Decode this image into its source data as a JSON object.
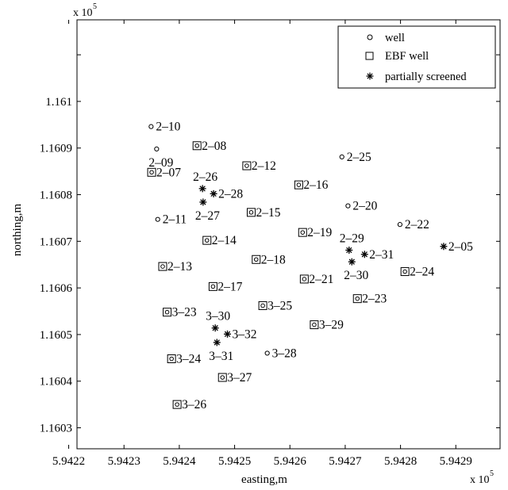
{
  "chart_data": {
    "type": "scatter",
    "title": "",
    "xlabel": "easting,m",
    "ylabel": "northing,m",
    "x_multiplier": "x 10",
    "x_multiplier_exp": "5",
    "y_multiplier": "x 10",
    "y_multiplier_exp": "5",
    "xlim": [
      594221.5,
      594298
    ],
    "ylim": [
      116025.5,
      116117.5
    ],
    "x_ticks": [
      594220,
      594230,
      594240,
      594250,
      594260,
      594270,
      594280,
      594290
    ],
    "x_tick_labels": [
      "5.9422",
      "5.9423",
      "5.9424",
      "5.9425",
      "5.9426",
      "5.9427",
      "5.9428",
      "5.9429"
    ],
    "y_ticks": [
      116030,
      116040,
      116050,
      116060,
      116070,
      116080,
      116090,
      116100,
      116110
    ],
    "y_tick_labels": [
      "1.1603",
      "1.1604",
      "1.1605",
      "1.1606",
      "1.1607",
      "1.1608",
      "1.1609",
      "1.161",
      ""
    ],
    "legend": {
      "position": "top-right",
      "entries": [
        {
          "marker": "circle",
          "label": "well"
        },
        {
          "marker": "square",
          "label": "EBF well"
        },
        {
          "marker": "star",
          "label": "partially screened"
        }
      ]
    },
    "series": [
      {
        "name": "well",
        "marker": "circle",
        "points": [
          {
            "x": 594234.9,
            "y": 116094.6,
            "label": "2-10"
          },
          {
            "x": 594235.9,
            "y": 116089.8,
            "label": "2-09"
          },
          {
            "x": 594269.4,
            "y": 116088.1,
            "label": "2-25"
          },
          {
            "x": 594270.5,
            "y": 116077.6,
            "label": "2-20"
          },
          {
            "x": 594236.1,
            "y": 116074.7,
            "label": "2-11"
          },
          {
            "x": 594279.9,
            "y": 116073.6,
            "label": "2-22"
          },
          {
            "x": 594255.9,
            "y": 116046.0,
            "label": "3-28"
          }
        ]
      },
      {
        "name": "EBF well",
        "marker": "square",
        "points": [
          {
            "x": 594243.2,
            "y": 116090.5,
            "label": "2-08"
          },
          {
            "x": 594252.2,
            "y": 116086.2,
            "label": "2-12"
          },
          {
            "x": 594235.0,
            "y": 116084.8,
            "label": "2-07"
          },
          {
            "x": 594261.6,
            "y": 116082.1,
            "label": "2-16"
          },
          {
            "x": 594253.0,
            "y": 116076.2,
            "label": "2-15"
          },
          {
            "x": 594262.3,
            "y": 116071.9,
            "label": "2-19"
          },
          {
            "x": 594245.0,
            "y": 116070.2,
            "label": "2-14"
          },
          {
            "x": 594253.9,
            "y": 116066.1,
            "label": "2-18"
          },
          {
            "x": 594237.0,
            "y": 116064.6,
            "label": "2-13"
          },
          {
            "x": 594280.8,
            "y": 116063.5,
            "label": "2-24"
          },
          {
            "x": 594262.6,
            "y": 116061.9,
            "label": "2-21"
          },
          {
            "x": 594246.1,
            "y": 116060.3,
            "label": "2-17"
          },
          {
            "x": 594272.2,
            "y": 116057.7,
            "label": "2-23"
          },
          {
            "x": 594255.1,
            "y": 116056.2,
            "label": "3-25"
          },
          {
            "x": 594237.8,
            "y": 116054.8,
            "label": "3-23"
          },
          {
            "x": 594264.4,
            "y": 116052.1,
            "label": "3-29"
          },
          {
            "x": 594238.6,
            "y": 116044.8,
            "label": "3-24"
          },
          {
            "x": 594247.8,
            "y": 116040.8,
            "label": "3-27"
          },
          {
            "x": 594239.6,
            "y": 116035.0,
            "label": "3-26"
          }
        ]
      },
      {
        "name": "partially screened",
        "marker": "star",
        "points": [
          {
            "x": 594244.2,
            "y": 116081.3,
            "label": "2-26"
          },
          {
            "x": 594246.2,
            "y": 116080.2,
            "label": "2-28"
          },
          {
            "x": 594244.3,
            "y": 116078.4,
            "label": "2-27"
          },
          {
            "x": 594270.7,
            "y": 116068.1,
            "label": "2-29"
          },
          {
            "x": 594273.5,
            "y": 116067.2,
            "label": "2-31"
          },
          {
            "x": 594271.2,
            "y": 116065.6,
            "label": "2-30"
          },
          {
            "x": 594287.8,
            "y": 116068.9,
            "label": "2-05"
          },
          {
            "x": 594246.5,
            "y": 116051.4,
            "label": "3-30"
          },
          {
            "x": 594248.7,
            "y": 116050.1,
            "label": "3-32"
          },
          {
            "x": 594246.8,
            "y": 116048.3,
            "label": "3-31"
          }
        ]
      }
    ]
  }
}
